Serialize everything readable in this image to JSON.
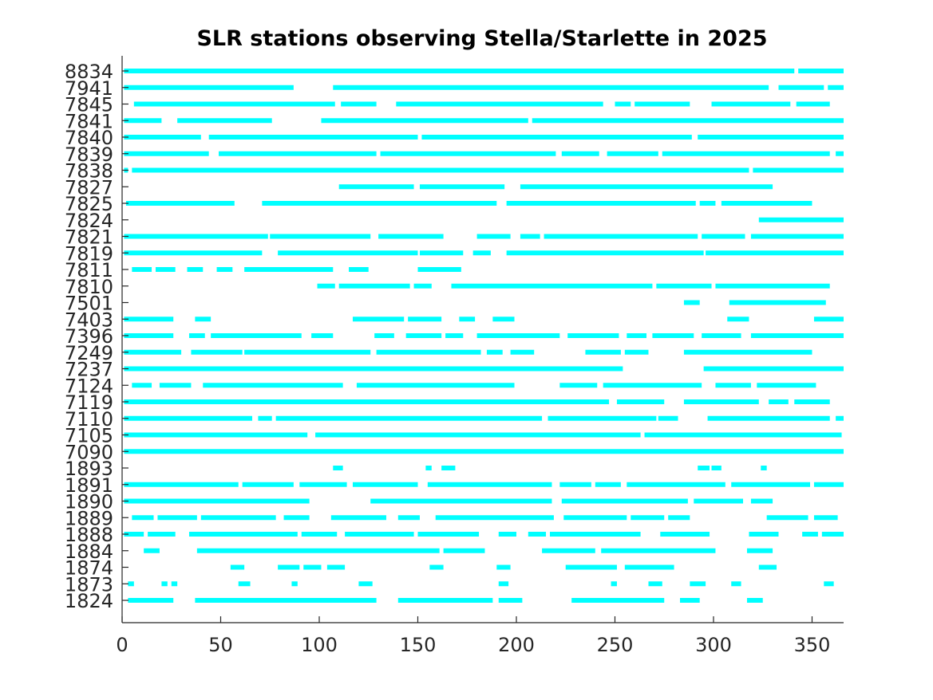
{
  "chart_data": {
    "type": "bar",
    "subtype": "timeline",
    "title": "SLR stations observing Stella/Starlette in 2025",
    "xlabel": "",
    "ylabel": "",
    "xlim": [
      0,
      366
    ],
    "xticks": [
      "0",
      "50",
      "100",
      "150",
      "200",
      "250",
      "300",
      "350"
    ],
    "grid": false,
    "color": "#00ffff",
    "stations": [
      {
        "name": "8834",
        "segments": [
          [
            1,
            341
          ],
          [
            343,
            366
          ]
        ]
      },
      {
        "name": "7941",
        "segments": [
          [
            1,
            87
          ],
          [
            107,
            328
          ],
          [
            333,
            356
          ],
          [
            358,
            366
          ]
        ]
      },
      {
        "name": "7845",
        "segments": [
          [
            6,
            108
          ],
          [
            111,
            129
          ],
          [
            139,
            244
          ],
          [
            250,
            258
          ],
          [
            260,
            288
          ],
          [
            299,
            339
          ],
          [
            342,
            359
          ]
        ]
      },
      {
        "name": "7841",
        "segments": [
          [
            1,
            20
          ],
          [
            28,
            76
          ],
          [
            101,
            206
          ],
          [
            208,
            366
          ]
        ]
      },
      {
        "name": "7840",
        "segments": [
          [
            1,
            40
          ],
          [
            44,
            150
          ],
          [
            152,
            289
          ],
          [
            292,
            366
          ]
        ]
      },
      {
        "name": "7839",
        "segments": [
          [
            1,
            44
          ],
          [
            49,
            129
          ],
          [
            131,
            220
          ],
          [
            223,
            242
          ],
          [
            246,
            272
          ],
          [
            274,
            359
          ],
          [
            362,
            366
          ]
        ]
      },
      {
        "name": "7838",
        "segments": [
          [
            1,
            3
          ],
          [
            5,
            318
          ],
          [
            320,
            366
          ]
        ]
      },
      {
        "name": "7827",
        "segments": [
          [
            110,
            148
          ],
          [
            151,
            194
          ],
          [
            202,
            330
          ]
        ]
      },
      {
        "name": "7825",
        "segments": [
          [
            2,
            57
          ],
          [
            71,
            190
          ],
          [
            195,
            291
          ],
          [
            293,
            301
          ],
          [
            304,
            350
          ]
        ]
      },
      {
        "name": "7824",
        "segments": [
          [
            323,
            366
          ]
        ]
      },
      {
        "name": "7821",
        "segments": [
          [
            1,
            74
          ],
          [
            75,
            126
          ],
          [
            130,
            163
          ],
          [
            180,
            197
          ],
          [
            202,
            212
          ],
          [
            214,
            292
          ],
          [
            294,
            316
          ],
          [
            319,
            366
          ]
        ]
      },
      {
        "name": "7819",
        "segments": [
          [
            1,
            71
          ],
          [
            79,
            150
          ],
          [
            151,
            173
          ],
          [
            178,
            187
          ],
          [
            195,
            295
          ],
          [
            296,
            366
          ]
        ]
      },
      {
        "name": "7811",
        "segments": [
          [
            5,
            15
          ],
          [
            17,
            27
          ],
          [
            33,
            41
          ],
          [
            48,
            56
          ],
          [
            62,
            107
          ],
          [
            115,
            125
          ],
          [
            150,
            172
          ]
        ]
      },
      {
        "name": "7810",
        "segments": [
          [
            99,
            108
          ],
          [
            110,
            146
          ],
          [
            148,
            157
          ],
          [
            167,
            269
          ],
          [
            271,
            299
          ],
          [
            301,
            359
          ]
        ]
      },
      {
        "name": "7501",
        "segments": [
          [
            285,
            293
          ],
          [
            308,
            357
          ]
        ]
      },
      {
        "name": "7403",
        "segments": [
          [
            1,
            26
          ],
          [
            37,
            45
          ],
          [
            117,
            143
          ],
          [
            145,
            162
          ],
          [
            171,
            179
          ],
          [
            188,
            199
          ],
          [
            307,
            318
          ],
          [
            351,
            366
          ]
        ]
      },
      {
        "name": "7396",
        "segments": [
          [
            1,
            26
          ],
          [
            34,
            42
          ],
          [
            45,
            91
          ],
          [
            96,
            107
          ],
          [
            128,
            138
          ],
          [
            144,
            162
          ],
          [
            164,
            173
          ],
          [
            180,
            222
          ],
          [
            226,
            252
          ],
          [
            256,
            266
          ],
          [
            269,
            290
          ],
          [
            294,
            314
          ],
          [
            319,
            366
          ]
        ]
      },
      {
        "name": "7249",
        "segments": [
          [
            1,
            30
          ],
          [
            35,
            61
          ],
          [
            62,
            126
          ],
          [
            129,
            182
          ],
          [
            185,
            193
          ],
          [
            197,
            209
          ],
          [
            235,
            253
          ],
          [
            255,
            267
          ],
          [
            285,
            350
          ]
        ]
      },
      {
        "name": "7237",
        "segments": [
          [
            1,
            254
          ],
          [
            295,
            366
          ]
        ]
      },
      {
        "name": "7124",
        "segments": [
          [
            5,
            15
          ],
          [
            19,
            35
          ],
          [
            41,
            112
          ],
          [
            119,
            199
          ],
          [
            222,
            241
          ],
          [
            244,
            294
          ],
          [
            301,
            319
          ],
          [
            322,
            352
          ]
        ]
      },
      {
        "name": "7119",
        "segments": [
          [
            1,
            247
          ],
          [
            251,
            275
          ],
          [
            285,
            323
          ],
          [
            328,
            338
          ],
          [
            341,
            359
          ]
        ]
      },
      {
        "name": "7110",
        "segments": [
          [
            1,
            66
          ],
          [
            69,
            76
          ],
          [
            78,
            213
          ],
          [
            216,
            271
          ],
          [
            272,
            282
          ],
          [
            297,
            359
          ],
          [
            362,
            366
          ]
        ]
      },
      {
        "name": "7105",
        "segments": [
          [
            1,
            94
          ],
          [
            98,
            263
          ],
          [
            265,
            365
          ]
        ]
      },
      {
        "name": "7090",
        "segments": [
          [
            1,
            366
          ]
        ]
      },
      {
        "name": "1893",
        "segments": [
          [
            107,
            112
          ],
          [
            154,
            157
          ],
          [
            162,
            169
          ],
          [
            292,
            298
          ],
          [
            299,
            304
          ],
          [
            324,
            327
          ]
        ]
      },
      {
        "name": "1891",
        "segments": [
          [
            1,
            59
          ],
          [
            61,
            87
          ],
          [
            90,
            114
          ],
          [
            117,
            150
          ],
          [
            155,
            218
          ],
          [
            222,
            238
          ],
          [
            240,
            253
          ],
          [
            256,
            306
          ],
          [
            309,
            349
          ],
          [
            351,
            366
          ]
        ]
      },
      {
        "name": "1890",
        "segments": [
          [
            1,
            95
          ],
          [
            126,
            218
          ],
          [
            223,
            287
          ],
          [
            290,
            315
          ],
          [
            319,
            330
          ]
        ]
      },
      {
        "name": "1889",
        "segments": [
          [
            5,
            16
          ],
          [
            18,
            38
          ],
          [
            40,
            78
          ],
          [
            82,
            95
          ],
          [
            106,
            134
          ],
          [
            140,
            151
          ],
          [
            159,
            219
          ],
          [
            224,
            256
          ],
          [
            258,
            275
          ],
          [
            277,
            288
          ],
          [
            327,
            348
          ],
          [
            351,
            363
          ]
        ]
      },
      {
        "name": "1888",
        "segments": [
          [
            1,
            11
          ],
          [
            13,
            27
          ],
          [
            34,
            89
          ],
          [
            91,
            109
          ],
          [
            113,
            148
          ],
          [
            150,
            181
          ],
          [
            191,
            200
          ],
          [
            206,
            215
          ],
          [
            217,
            263
          ],
          [
            273,
            298
          ],
          [
            318,
            333
          ],
          [
            345,
            353
          ],
          [
            355,
            366
          ]
        ]
      },
      {
        "name": "1884",
        "segments": [
          [
            11,
            19
          ],
          [
            38,
            161
          ],
          [
            163,
            184
          ],
          [
            213,
            240
          ],
          [
            243,
            301
          ],
          [
            317,
            330
          ]
        ]
      },
      {
        "name": "1874",
        "segments": [
          [
            55,
            62
          ],
          [
            79,
            90
          ],
          [
            92,
            101
          ],
          [
            104,
            113
          ],
          [
            156,
            163
          ],
          [
            190,
            197
          ],
          [
            225,
            251
          ],
          [
            255,
            280
          ],
          [
            323,
            332
          ]
        ]
      },
      {
        "name": "1873",
        "segments": [
          [
            3,
            6
          ],
          [
            20,
            23
          ],
          [
            25,
            28
          ],
          [
            59,
            65
          ],
          [
            86,
            89
          ],
          [
            120,
            127
          ],
          [
            191,
            196
          ],
          [
            248,
            251
          ],
          [
            267,
            274
          ],
          [
            288,
            296
          ],
          [
            309,
            314
          ],
          [
            356,
            361
          ]
        ]
      },
      {
        "name": "1824",
        "segments": [
          [
            3,
            26
          ],
          [
            37,
            129
          ],
          [
            140,
            188
          ],
          [
            191,
            203
          ],
          [
            228,
            275
          ],
          [
            283,
            293
          ],
          [
            317,
            325
          ]
        ]
      }
    ]
  }
}
